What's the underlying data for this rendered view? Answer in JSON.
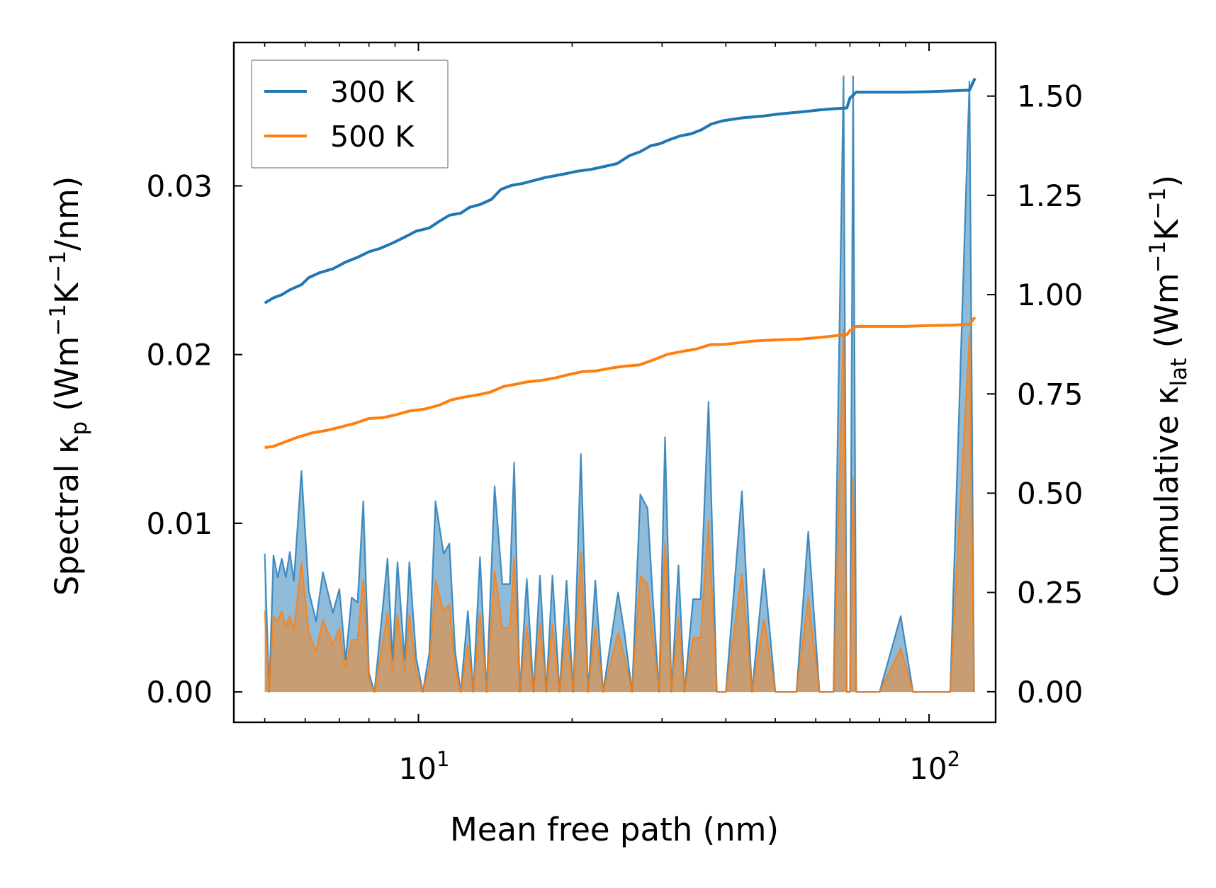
{
  "chart_data": {
    "type": "line",
    "x_scale": "log",
    "xlabel": "Mean free path (nm)",
    "ylabel_left": {
      "main": "Spectral κ",
      "sub": "p",
      "units_pre": " (Wm",
      "exp1": "−1",
      "units_mid": "K",
      "exp2": "−1",
      "units_post": "/nm)"
    },
    "ylabel_right": {
      "main": "Cumulative κ",
      "sub": "lat",
      "units_pre": " (Wm",
      "exp1": "−1",
      "units_mid": "K",
      "exp2": "−1",
      "units_post": ")"
    },
    "xlim": [
      4.35,
      135
    ],
    "ylim_left": [
      -0.0018,
      0.0385
    ],
    "ylim_right": [
      -0.077,
      1.635
    ],
    "x_ticks": [
      {
        "base": "10",
        "exp": "1",
        "value": 10
      },
      {
        "base": "10",
        "exp": "2",
        "value": 100
      }
    ],
    "y_left_ticks": [
      {
        "label": "0.00",
        "value": 0
      },
      {
        "label": "0.01",
        "value": 0.01
      },
      {
        "label": "0.02",
        "value": 0.02
      },
      {
        "label": "0.03",
        "value": 0.03
      }
    ],
    "y_right_ticks": [
      {
        "label": "0.00",
        "value": 0
      },
      {
        "label": "0.25",
        "value": 0.25
      },
      {
        "label": "0.50",
        "value": 0.5
      },
      {
        "label": "0.75",
        "value": 0.75
      },
      {
        "label": "1.00",
        "value": 1.0
      },
      {
        "label": "1.25",
        "value": 1.25
      },
      {
        "label": "1.50",
        "value": 1.5
      }
    ],
    "legend": {
      "position": "top-left",
      "entries": [
        {
          "label": "300 K",
          "color": "#1f77b4"
        },
        {
          "label": "500 K",
          "color": "#ff7f0e"
        }
      ]
    },
    "spectral_x": [
      5.0,
      5.1,
      5.2,
      5.3,
      5.4,
      5.5,
      5.6,
      5.7,
      5.9,
      6.1,
      6.3,
      6.5,
      6.8,
      7.0,
      7.2,
      7.4,
      7.6,
      7.8,
      8.0,
      8.2,
      8.4,
      8.7,
      8.9,
      9.1,
      9.4,
      9.6,
      9.9,
      10.2,
      10.5,
      10.8,
      11.2,
      11.5,
      11.8,
      12.1,
      12.5,
      12.8,
      13.2,
      13.6,
      14.1,
      14.6,
      15.1,
      15.4,
      15.8,
      16.3,
      16.8,
      17.3,
      17.8,
      18.3,
      18.9,
      19.5,
      20.1,
      20.8,
      21.5,
      22.2,
      23.0,
      24.6,
      25.3,
      26.2,
      27.2,
      28.1,
      28.8,
      29.6,
      30.4,
      31.3,
      32.3,
      33.2,
      34.5,
      35.7,
      37.0,
      38.4,
      40.0,
      43.0,
      45.0,
      47.5,
      50.0,
      52.5,
      55.0,
      58.0,
      61.0,
      63.0,
      65.0,
      68.0,
      69.0,
      70.0,
      71.0,
      72.0,
      74.0,
      76.0,
      80.0,
      88.0,
      93.0,
      95.0,
      98.0,
      103.0,
      110.0,
      120.0,
      122.5,
      125.0
    ],
    "series": [
      {
        "name": "300 K",
        "color": "#1f77b4",
        "spectral": [
          0.0082,
          0.0,
          0.0081,
          0.0068,
          0.0079,
          0.0068,
          0.0083,
          0.0066,
          0.0131,
          0.006,
          0.0042,
          0.0071,
          0.0047,
          0.0061,
          0.0019,
          0.0056,
          0.0053,
          0.0113,
          0.0011,
          0.0,
          0.0032,
          0.0079,
          0.0019,
          0.0077,
          0.0019,
          0.0077,
          0.002,
          0.0,
          0.0023,
          0.0113,
          0.0082,
          0.0088,
          0.0024,
          0.0,
          0.0048,
          0.0,
          0.008,
          0.0,
          0.0122,
          0.0064,
          0.0064,
          0.0136,
          0.0,
          0.0067,
          0.0,
          0.0069,
          0.0,
          0.0069,
          0.0,
          0.0066,
          0.0,
          0.0141,
          0.0,
          0.0066,
          0.0,
          0.0059,
          0.0036,
          0.0,
          0.0117,
          0.0109,
          0.0054,
          0.0,
          0.0151,
          0.0,
          0.0075,
          0.0,
          0.0055,
          0.0055,
          0.0172,
          0.0,
          0.0,
          0.0119,
          0.0,
          0.0073,
          0.0,
          0.0,
          0.0,
          0.0095,
          0.0,
          0.0,
          0.0,
          0.0365,
          0.0,
          0.0,
          0.0365,
          0.0,
          0.0,
          0.0,
          0.0,
          0.0045,
          0.0,
          0.0,
          0.0,
          0.0,
          0.0,
          0.0362,
          0.0
        ],
        "cumulative_x": [
          5.0,
          5.2,
          5.4,
          5.6,
          5.9,
          6.1,
          6.4,
          6.8,
          7.2,
          7.6,
          8.0,
          8.4,
          8.9,
          9.4,
          9.9,
          10.5,
          11.0,
          11.5,
          12.1,
          12.6,
          13.2,
          13.9,
          14.5,
          15.2,
          16.0,
          16.8,
          17.7,
          18.6,
          19.5,
          20.5,
          21.7,
          23.0,
          24.5,
          25.9,
          27.2,
          28.5,
          29.7,
          31.0,
          32.6,
          34.2,
          35.8,
          37.5,
          39.5,
          43.0,
          47.5,
          51.0,
          56.0,
          61.0,
          65.0,
          69.0,
          70.0,
          72.0,
          80.0,
          90.0,
          100.0,
          110.0,
          120.0,
          123.0
        ],
        "cumulative": [
          0.979,
          0.992,
          1.0,
          1.012,
          1.025,
          1.043,
          1.055,
          1.065,
          1.082,
          1.094,
          1.108,
          1.116,
          1.13,
          1.145,
          1.16,
          1.168,
          1.185,
          1.2,
          1.205,
          1.22,
          1.227,
          1.24,
          1.265,
          1.275,
          1.28,
          1.287,
          1.295,
          1.3,
          1.305,
          1.311,
          1.315,
          1.322,
          1.33,
          1.35,
          1.36,
          1.375,
          1.38,
          1.39,
          1.4,
          1.405,
          1.415,
          1.43,
          1.438,
          1.445,
          1.45,
          1.455,
          1.46,
          1.465,
          1.468,
          1.47,
          1.495,
          1.51,
          1.51,
          1.51,
          1.511,
          1.513,
          1.515,
          1.545
        ]
      },
      {
        "name": "500 K",
        "color": "#ff7f0e",
        "spectral": [
          0.0048,
          0.0,
          0.0045,
          0.0042,
          0.0048,
          0.0039,
          0.0045,
          0.0037,
          0.0077,
          0.0035,
          0.0024,
          0.0043,
          0.0028,
          0.0038,
          0.0014,
          0.0031,
          0.0031,
          0.0067,
          0.0006,
          0.0,
          0.0019,
          0.0047,
          0.0011,
          0.0046,
          0.0011,
          0.0046,
          0.0012,
          0.0,
          0.0014,
          0.0066,
          0.0048,
          0.0052,
          0.0014,
          0.0,
          0.0028,
          0.0,
          0.0047,
          0.0,
          0.0072,
          0.0038,
          0.0038,
          0.008,
          0.0,
          0.0039,
          0.0,
          0.0041,
          0.0,
          0.004,
          0.0,
          0.0039,
          0.0,
          0.0083,
          0.0,
          0.0039,
          0.0,
          0.0035,
          0.0021,
          0.0,
          0.0069,
          0.0064,
          0.0032,
          0.0,
          0.0089,
          0.0,
          0.0044,
          0.0,
          0.0032,
          0.0032,
          0.0101,
          0.0,
          0.0,
          0.007,
          0.0,
          0.0043,
          0.0,
          0.0,
          0.0,
          0.0056,
          0.0,
          0.0,
          0.0,
          0.0215,
          0.0,
          0.0,
          0.0127,
          0.0,
          0.0,
          0.0,
          0.0,
          0.0026,
          0.0,
          0.0,
          0.0,
          0.0,
          0.0,
          0.0212,
          0.0
        ],
        "cumulative_x": [
          5.0,
          5.2,
          5.5,
          5.8,
          6.2,
          6.6,
          7.0,
          7.5,
          8.0,
          8.5,
          9.0,
          9.6,
          10.3,
          11.0,
          11.6,
          12.3,
          13.0,
          13.8,
          14.7,
          15.3,
          16.3,
          17.4,
          18.5,
          19.6,
          20.9,
          22.3,
          23.8,
          25.4,
          27.1,
          28.9,
          30.8,
          32.8,
          35.0,
          37.3,
          40.0,
          45.0,
          50.0,
          56.0,
          62.0,
          66.0,
          69.0,
          70.0,
          72.0,
          80.0,
          90.0,
          100.0,
          110.0,
          120.0,
          123.0
        ],
        "cumulative": [
          0.615,
          0.618,
          0.63,
          0.641,
          0.652,
          0.658,
          0.666,
          0.676,
          0.688,
          0.69,
          0.697,
          0.707,
          0.712,
          0.722,
          0.735,
          0.742,
          0.747,
          0.754,
          0.769,
          0.773,
          0.78,
          0.784,
          0.79,
          0.798,
          0.806,
          0.808,
          0.815,
          0.82,
          0.823,
          0.836,
          0.85,
          0.857,
          0.863,
          0.874,
          0.875,
          0.883,
          0.886,
          0.888,
          0.893,
          0.897,
          0.899,
          0.91,
          0.92,
          0.92,
          0.92,
          0.922,
          0.923,
          0.925,
          0.943
        ]
      }
    ]
  }
}
